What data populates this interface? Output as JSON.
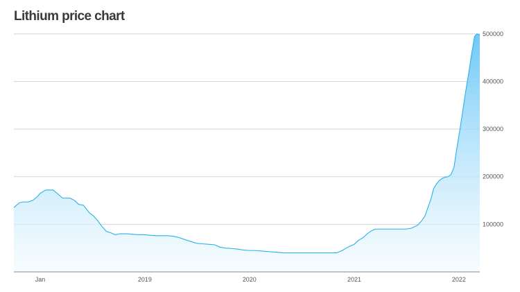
{
  "colors": {
    "line": "#2bb0ea",
    "fill_top": "#69c6f5",
    "fill_bottom": "#f2fbff",
    "grid": "#d4d4d4"
  },
  "chart_data": {
    "type": "area",
    "title": "Lithium price chart",
    "xlabel": "",
    "ylabel": "",
    "grid": true,
    "y_axis_side": "right",
    "legend": "none",
    "ylim": [
      0,
      510000
    ],
    "y_ticks": [
      {
        "value": 100000,
        "label": "100000"
      },
      {
        "value": 200000,
        "label": "200000"
      },
      {
        "value": 300000,
        "label": "300000"
      },
      {
        "value": 400000,
        "label": "400000"
      },
      {
        "value": 500000,
        "label": "500000"
      }
    ],
    "xlim": [
      "2017-10-01",
      "2022-03-15"
    ],
    "x_ticks": [
      {
        "value": "2018-01-01",
        "label": "Jan"
      },
      {
        "value": "2019-01-01",
        "label": "2019"
      },
      {
        "value": "2020-01-01",
        "label": "2020"
      },
      {
        "value": "2021-01-01",
        "label": "2021"
      },
      {
        "value": "2022-01-01",
        "label": "2022"
      }
    ],
    "series": [
      {
        "x": [
          "2017-10-01",
          "2017-10-10",
          "2017-10-20",
          "2017-11-01",
          "2017-11-20",
          "2017-12-05",
          "2017-12-20",
          "2018-01-01",
          "2018-01-20",
          "2018-02-01",
          "2018-02-15",
          "2018-03-01",
          "2018-03-20",
          "2018-04-01",
          "2018-04-15",
          "2018-05-01",
          "2018-05-15",
          "2018-06-01",
          "2018-06-20",
          "2018-07-05",
          "2018-07-20",
          "2018-08-05",
          "2018-08-20",
          "2018-09-05",
          "2018-09-20",
          "2018-10-05",
          "2018-10-20",
          "2018-11-01",
          "2018-11-20",
          "2018-12-10",
          "2019-01-01",
          "2019-01-20",
          "2019-02-10",
          "2019-03-01",
          "2019-03-20",
          "2019-04-10",
          "2019-05-01",
          "2019-05-20",
          "2019-06-10",
          "2019-07-01",
          "2019-07-20",
          "2019-08-10",
          "2019-09-01",
          "2019-09-20",
          "2019-10-10",
          "2019-11-01",
          "2019-11-20",
          "2019-12-10",
          "2020-01-01",
          "2020-01-20",
          "2020-02-10",
          "2020-03-01",
          "2020-03-20",
          "2020-04-10",
          "2020-05-01",
          "2020-05-20",
          "2020-06-10",
          "2020-07-01",
          "2020-07-20",
          "2020-08-10",
          "2020-09-01",
          "2020-09-20",
          "2020-10-10",
          "2020-11-01",
          "2020-11-20",
          "2020-12-10",
          "2021-01-01",
          "2021-01-15",
          "2021-02-01",
          "2021-02-15",
          "2021-03-01",
          "2021-03-15",
          "2021-04-01",
          "2021-04-15",
          "2021-05-01",
          "2021-05-20",
          "2021-06-10",
          "2021-07-01",
          "2021-07-20",
          "2021-08-10",
          "2021-08-25",
          "2021-09-05",
          "2021-09-15",
          "2021-09-25",
          "2021-10-05",
          "2021-10-15",
          "2021-10-25",
          "2021-11-05",
          "2021-11-15",
          "2021-11-25",
          "2021-12-05",
          "2021-12-15",
          "2021-12-25",
          "2022-01-05",
          "2022-01-15",
          "2022-01-25",
          "2022-02-05",
          "2022-02-15",
          "2022-02-25",
          "2022-03-05",
          "2022-03-15"
        ],
        "y": [
          135000,
          140000,
          145000,
          147000,
          147000,
          150000,
          157000,
          165000,
          172000,
          172000,
          172000,
          165000,
          155000,
          155000,
          155000,
          150000,
          142000,
          140000,
          125000,
          118000,
          108000,
          95000,
          85000,
          82000,
          78000,
          80000,
          80000,
          80000,
          79000,
          78000,
          78000,
          77000,
          76000,
          76000,
          76000,
          75000,
          72000,
          68000,
          64000,
          60000,
          59000,
          58000,
          57000,
          52000,
          50000,
          49000,
          48000,
          46000,
          45000,
          45000,
          44000,
          43000,
          42000,
          41000,
          40000,
          40000,
          40000,
          40000,
          40000,
          40000,
          40000,
          40000,
          40000,
          40000,
          45000,
          52000,
          58000,
          66000,
          72000,
          80000,
          86000,
          90000,
          90000,
          90000,
          90000,
          90000,
          90000,
          90000,
          92000,
          98000,
          108000,
          118000,
          135000,
          152000,
          175000,
          185000,
          192000,
          197000,
          199000,
          200000,
          205000,
          220000,
          260000,
          300000,
          340000,
          380000,
          420000,
          460000,
          495000,
          500000,
          498000
        ]
      }
    ]
  }
}
